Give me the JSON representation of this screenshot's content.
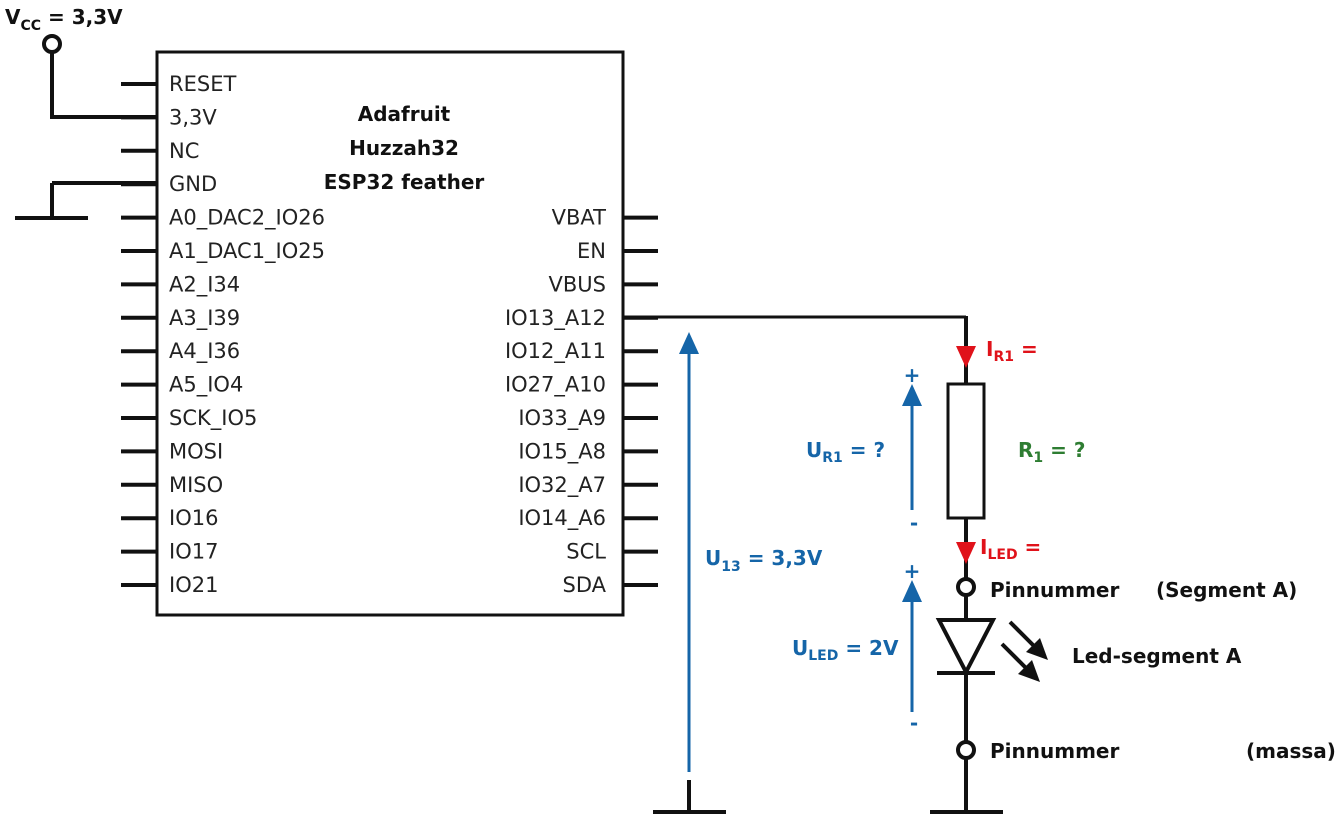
{
  "supply": {
    "prefix": "V",
    "sub": "CC",
    "value": " = 3,3V"
  },
  "chip": {
    "title_lines": [
      "Adafruit",
      "Huzzah32",
      "ESP32 feather"
    ],
    "left_pins": [
      "RESET",
      "3,3V",
      "NC",
      "GND",
      "A0_DAC2_IO26",
      "A1_DAC1_IO25",
      "A2_I34",
      "A3_I39",
      "A4_I36",
      "A5_IO4",
      "SCK_IO5",
      "MOSI",
      "MISO",
      "IO16",
      "IO17",
      "IO21"
    ],
    "right_pins": [
      "VBAT",
      "EN",
      "VBUS",
      "IO13_A12",
      "IO12_A11",
      "IO27_A10",
      "IO33_A9",
      "IO15_A8",
      "IO32_A7",
      "IO14_A6",
      "SCL",
      "SDA"
    ]
  },
  "labels": {
    "u13": {
      "prefix": "U",
      "sub": "13",
      "value": " = 3,3V"
    },
    "ur1": {
      "prefix": "U",
      "sub": "R1",
      "value": " = ?"
    },
    "uled": {
      "prefix": "U",
      "sub": "LED",
      "value": " = 2V"
    },
    "ir1": {
      "prefix": "I",
      "sub": "R1",
      "value": " ="
    },
    "iled": {
      "prefix": "I",
      "sub": "LED",
      "value": " ="
    },
    "r1": {
      "prefix": "R",
      "sub": "1",
      "value": " = ?"
    },
    "plus": "+",
    "minus": "-",
    "pin_top": "Pinnummer",
    "segment_a": "(Segment A)",
    "led_segment": "Led-segment A",
    "pin_bottom": "Pinnummer",
    "massa": "(massa)"
  },
  "colors": {
    "voltage": "#1565a8",
    "current": "#e0121a",
    "resistor_label": "#2e7d32",
    "wire": "#111111"
  }
}
